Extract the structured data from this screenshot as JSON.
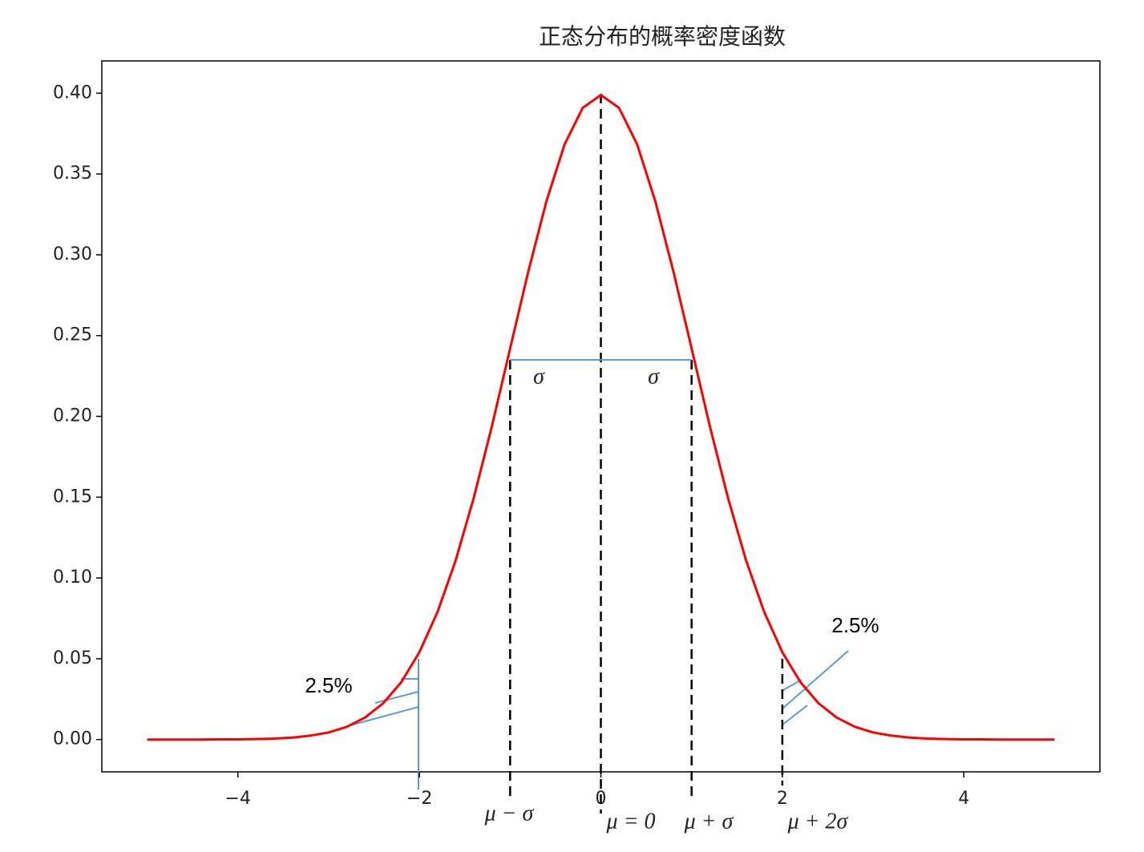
{
  "chart_data": {
    "type": "line",
    "title": "正态分布的概率密度函数",
    "x": [
      -5,
      -4.8,
      -4.6,
      -4.4,
      -4.2,
      -4,
      -3.8,
      -3.6,
      -3.4,
      -3.2,
      -3,
      -2.8,
      -2.6,
      -2.4,
      -2.2,
      -2,
      -1.8,
      -1.6,
      -1.4,
      -1.2,
      -1,
      -0.8,
      -0.6,
      -0.4,
      -0.2,
      0,
      0.2,
      0.4,
      0.6,
      0.8,
      1,
      1.2,
      1.4,
      1.6,
      1.8,
      2,
      2.2,
      2.4,
      2.6,
      2.8,
      3,
      3.2,
      3.4,
      3.6,
      3.8,
      4,
      4.2,
      4.4,
      4.6,
      4.8,
      5
    ],
    "values": [
      0,
      0,
      0,
      0,
      0.0001,
      0.0001,
      0.0003,
      0.0006,
      0.0012,
      0.0024,
      0.0044,
      0.0079,
      0.0136,
      0.0224,
      0.0355,
      0.054,
      0.079,
      0.1109,
      0.1497,
      0.1942,
      0.242,
      0.2897,
      0.3332,
      0.3683,
      0.391,
      0.3989,
      0.391,
      0.3683,
      0.3332,
      0.2897,
      0.242,
      0.1942,
      0.1497,
      0.1109,
      0.079,
      0.054,
      0.0355,
      0.0224,
      0.0136,
      0.0079,
      0.0044,
      0.0024,
      0.0012,
      0.0006,
      0.0003,
      0.0001,
      0.0001,
      0,
      0,
      0,
      0
    ],
    "color": "#ff0000",
    "xlim": [
      -5.5,
      5.5
    ],
    "xticks": [
      {
        "value": -4,
        "label": "−4"
      },
      {
        "value": -2,
        "label": "−2"
      },
      0,
      2,
      4
    ],
    "ylim": [
      -0.02,
      0.42
    ],
    "yticks": [
      {
        "value": 0,
        "label": "0.00"
      },
      {
        "value": 0.05,
        "label": "0.05"
      },
      {
        "value": 0.1,
        "label": "0.10"
      },
      {
        "value": 0.15,
        "label": "0.15"
      },
      {
        "value": 0.2,
        "label": "0.20"
      },
      {
        "value": 0.25,
        "label": "0.25"
      },
      {
        "value": 0.3,
        "label": "0.30"
      },
      {
        "value": 0.35,
        "label": "0.35"
      },
      {
        "value": 0.4,
        "label": "0.40"
      }
    ],
    "reference_lines": [
      {
        "x": -1,
        "label": "μ − σ"
      },
      {
        "x": 0,
        "label": "μ = 0"
      },
      {
        "x": 1,
        "label": "μ + σ"
      },
      {
        "x": 2,
        "label": "μ + 2σ"
      }
    ],
    "sigma_line_y": 0.235,
    "sigma_labels": [
      "σ",
      "σ"
    ],
    "tail_labels": [
      "2.5%",
      "2.5%"
    ]
  }
}
